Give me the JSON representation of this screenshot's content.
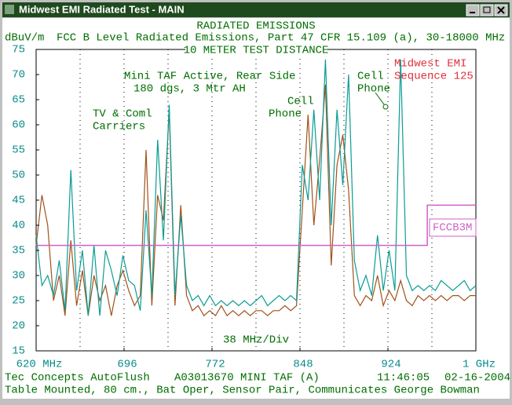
{
  "window": {
    "title": "Midwest EMI Radiated Test - MAIN"
  },
  "chart_data": {
    "type": "line",
    "title": "RADIATED EMISSIONS",
    "subtitle": "FCC B Level Radiated Emissions, Part 47 CFR 15.109 (a), 30-18000 MHz",
    "subtitle2": "10 METER TEST DISTANCE",
    "y_label": "dBuV/m",
    "x_label": "38 MHz/Div",
    "xlim": [
      620,
      1000
    ],
    "ylim": [
      15,
      75
    ],
    "yticks": [
      15,
      20,
      25,
      30,
      35,
      40,
      45,
      50,
      55,
      60,
      65,
      70,
      75
    ],
    "xticks": [
      {
        "value": 620,
        "label": "620 MHz"
      },
      696,
      772,
      848,
      924,
      {
        "value": 1000,
        "label": "1 GHz"
      }
    ],
    "xgrid": [
      620,
      658,
      696,
      734,
      772,
      810,
      848,
      886,
      924,
      962,
      1000
    ],
    "x": [
      620,
      625,
      630,
      635,
      640,
      645,
      650,
      655,
      660,
      665,
      670,
      675,
      680,
      685,
      690,
      695,
      700,
      705,
      710,
      715,
      720,
      725,
      730,
      735,
      740,
      745,
      750,
      755,
      760,
      765,
      770,
      775,
      780,
      785,
      790,
      795,
      800,
      805,
      810,
      815,
      820,
      825,
      830,
      835,
      840,
      845,
      850,
      855,
      860,
      865,
      870,
      875,
      880,
      885,
      890,
      895,
      900,
      905,
      910,
      915,
      920,
      925,
      930,
      935,
      940,
      945,
      950,
      955,
      960,
      965,
      970,
      975,
      980,
      985,
      990,
      995,
      1000
    ],
    "series": [
      {
        "color": "#a0521a",
        "values": [
          36,
          46,
          40,
          25,
          30,
          22,
          37,
          24,
          31,
          22,
          30,
          25,
          28,
          22,
          28,
          31,
          27,
          24,
          26,
          55,
          24,
          46,
          41,
          63,
          24,
          44,
          26,
          23,
          24,
          22,
          23,
          22,
          24,
          22,
          23,
          22,
          23,
          22,
          23,
          23,
          22,
          23,
          23,
          24,
          23,
          24,
          43,
          62,
          40,
          53,
          68,
          32,
          52,
          58,
          47,
          26,
          24,
          26,
          25,
          30,
          24,
          27,
          25,
          29,
          25,
          24,
          26,
          25,
          26,
          25,
          26,
          25,
          26,
          26,
          25,
          26,
          26
        ]
      },
      {
        "color": "#0a9c94",
        "values": [
          38,
          28,
          30,
          26,
          33,
          23,
          51,
          27,
          35,
          22,
          36,
          22,
          35,
          31,
          26,
          34,
          29,
          28,
          23,
          43,
          26,
          57,
          37,
          64,
          26,
          42,
          28,
          25,
          26,
          24,
          26,
          24,
          25,
          24,
          25,
          24,
          25,
          24,
          25,
          26,
          24,
          25,
          26,
          25,
          26,
          25,
          52,
          45,
          63,
          45,
          73,
          40,
          63,
          48,
          70,
          33,
          27,
          30,
          26,
          38,
          27,
          35,
          27,
          73,
          30,
          27,
          28,
          27,
          28,
          27,
          29,
          28,
          27,
          28,
          29,
          27,
          28
        ]
      },
      {
        "name": "FCCB3M",
        "color": "#d060c8",
        "x": [
          620,
          958,
          958,
          1000
        ],
        "values": [
          36,
          36,
          44,
          44
        ]
      }
    ],
    "annotations": [
      {
        "lines": [
          "Mini TAF Active, Rear Side",
          "180 dgs, 3 Mtr AH"
        ]
      },
      {
        "lines": [
          "TV & Coml",
          "Carriers"
        ]
      },
      {
        "lines": [
          "Cell",
          "Phone"
        ]
      },
      {
        "lines": [
          "Cell",
          "Phone"
        ]
      },
      {
        "lines": [
          "Midwest EMI",
          "Sequence 125"
        ]
      }
    ]
  },
  "footer": {
    "line1": [
      "Tec Concepts AutoFlush",
      "A03013670 MINI TAF (A)",
      "11:46:05",
      "02-16-2004"
    ],
    "line2": "Table Mounted, 80 cm., Bat Oper, Sensor Pair, Communicates George Bowman"
  }
}
